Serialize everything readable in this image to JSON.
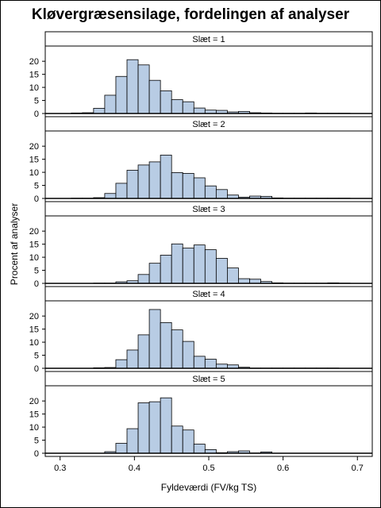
{
  "chart_data": {
    "type": "bar",
    "title": "Kløvergræsensilage, fordelingen af analyser",
    "xlabel": "Fyldeværdi (FV/kg TS)",
    "ylabel": "Procent af analyser",
    "xlim": [
      0.28,
      0.72
    ],
    "ylim": [
      0,
      24
    ],
    "bin_width": 0.015,
    "x_ticks": [
      "0.3",
      "0.4",
      "0.5",
      "0.6",
      "0.7"
    ],
    "y_ticks": [
      "0",
      "5",
      "10",
      "15",
      "20"
    ],
    "bar_color": "#b8cce4",
    "panels": [
      {
        "label": "Slæt = 1",
        "bins": [
          0.3225,
          0.3375,
          0.3525,
          0.3675,
          0.3825,
          0.3975,
          0.4125,
          0.4275,
          0.4425,
          0.4575,
          0.4725,
          0.4875,
          0.5025,
          0.5175,
          0.5325,
          0.5475,
          0.5625,
          0.5775,
          0.5925,
          0.6075,
          0.6225,
          0.6375,
          0.6525,
          0.6675,
          0.6825
        ],
        "values": [
          0.2,
          0.3,
          2.0,
          7.0,
          14.2,
          20.6,
          18.6,
          12.7,
          8.7,
          5.3,
          4.5,
          2.1,
          1.3,
          1.2,
          0.6,
          0.8,
          0.3,
          0.2,
          0.1,
          0.1,
          0.1,
          0.2,
          0.1,
          0.1,
          0.1
        ]
      },
      {
        "label": "Slæt = 2",
        "bins": [
          0.3225,
          0.3375,
          0.3525,
          0.3675,
          0.3825,
          0.3975,
          0.4125,
          0.4275,
          0.4425,
          0.4575,
          0.4725,
          0.4875,
          0.5025,
          0.5175,
          0.5325,
          0.5475,
          0.5625,
          0.5775,
          0.5925,
          0.6075,
          0.6225,
          0.6375,
          0.6525,
          0.6675,
          0.6825
        ],
        "values": [
          0.1,
          0.1,
          0.3,
          1.9,
          5.8,
          10.8,
          12.8,
          14.0,
          16.6,
          9.9,
          9.6,
          7.9,
          4.8,
          3.4,
          1.3,
          0.5,
          0.9,
          0.8,
          0.2,
          0.1,
          0.1,
          0.1,
          0.1,
          0.1,
          0.1
        ]
      },
      {
        "label": "Slæt = 3",
        "bins": [
          0.3525,
          0.3675,
          0.3825,
          0.3975,
          0.4125,
          0.4275,
          0.4425,
          0.4575,
          0.4725,
          0.4875,
          0.5025,
          0.5175,
          0.5325,
          0.5475,
          0.5625,
          0.5775,
          0.5925,
          0.6075,
          0.6225,
          0.6375,
          0.6525,
          0.6675,
          0.6825
        ],
        "values": [
          0.1,
          0.1,
          0.6,
          1.0,
          3.4,
          7.7,
          10.8,
          15.1,
          13.5,
          14.7,
          12.9,
          9.6,
          5.9,
          1.8,
          1.6,
          0.7,
          0.2,
          0.1,
          0.1,
          0.1,
          0.1,
          0.2,
          0.1
        ]
      },
      {
        "label": "Slæt = 4",
        "bins": [
          0.3525,
          0.3675,
          0.3825,
          0.3975,
          0.4125,
          0.4275,
          0.4425,
          0.4575,
          0.4725,
          0.4875,
          0.5025,
          0.5175,
          0.5325,
          0.5475,
          0.5625,
          0.5775,
          0.5925,
          0.6075,
          0.6225,
          0.6375,
          0.6525,
          0.6675
        ],
        "values": [
          0.2,
          0.3,
          3.3,
          7.0,
          12.8,
          22.5,
          17.5,
          14.7,
          10.3,
          4.6,
          3.5,
          1.6,
          1.3,
          0.4,
          0.1,
          0.1,
          0.1,
          0.1,
          0.1,
          0.1,
          0.1,
          0.1
        ]
      },
      {
        "label": "Slæt = 5",
        "bins": [
          0.3675,
          0.3825,
          0.3975,
          0.4125,
          0.4275,
          0.4425,
          0.4575,
          0.4725,
          0.4875,
          0.5025,
          0.5175,
          0.5325,
          0.5475,
          0.5625,
          0.5775
        ],
        "values": [
          0.6,
          3.8,
          9.4,
          19.3,
          19.7,
          21.2,
          10.4,
          8.9,
          3.5,
          1.4,
          0.2,
          0.6,
          0.9,
          0.1,
          0.5
        ]
      }
    ]
  }
}
